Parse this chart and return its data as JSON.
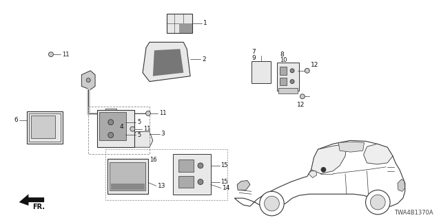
{
  "bg_color": "#ffffff",
  "diagram_code": "TWA4B1370A",
  "line_color": "#333333",
  "label_color": "#111111"
}
